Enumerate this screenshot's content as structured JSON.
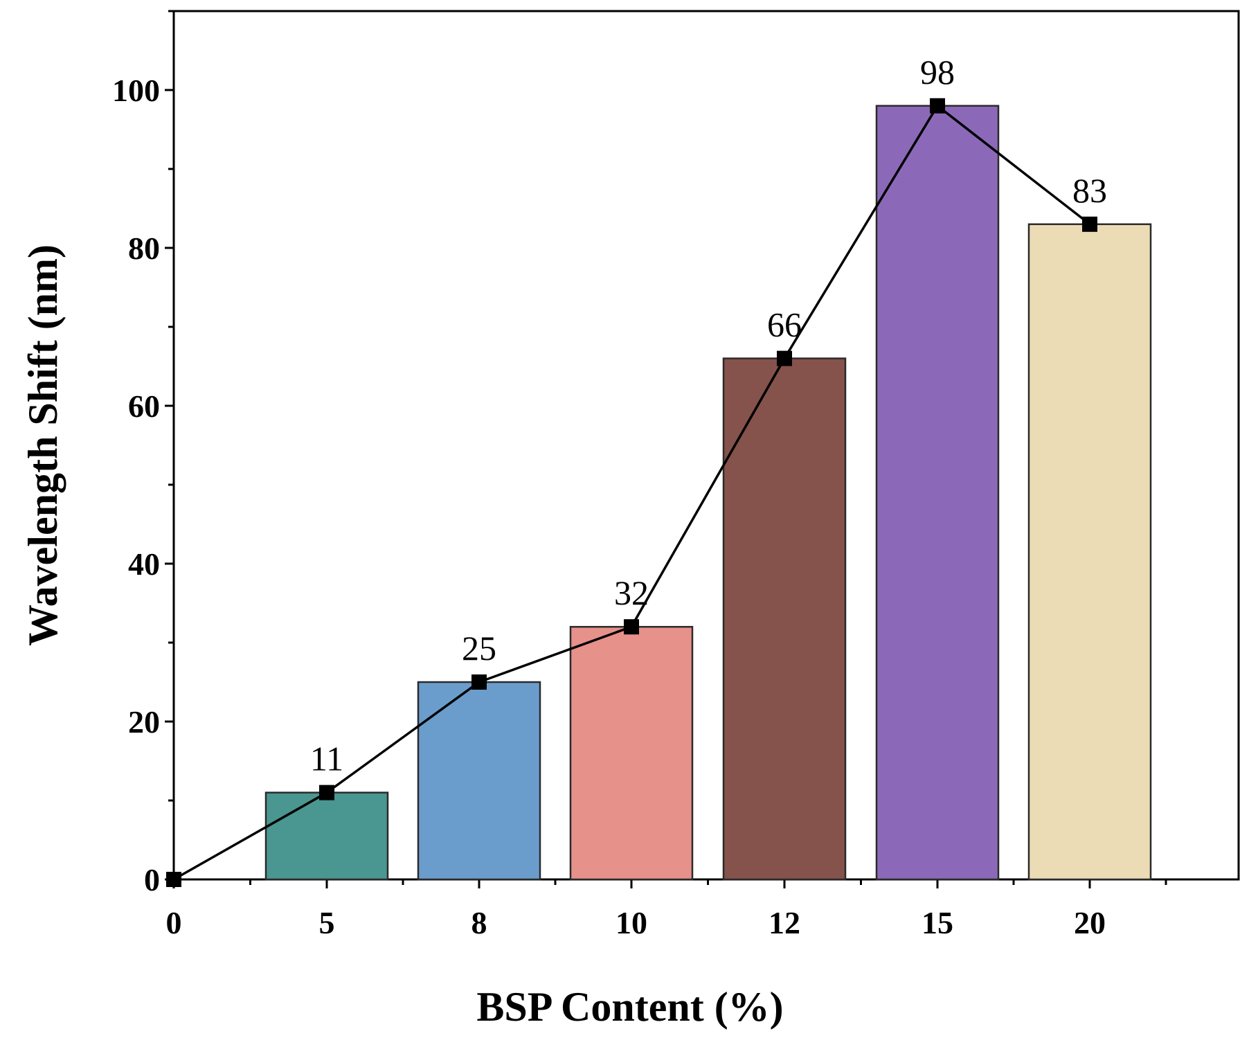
{
  "chart_data": {
    "type": "bar",
    "categories": [
      "0",
      "5",
      "8",
      "10",
      "12",
      "15",
      "20"
    ],
    "values": [
      0,
      11,
      25,
      32,
      66,
      98,
      83
    ],
    "data_labels": [
      "",
      "11",
      "25",
      "32",
      "66",
      "98",
      "83"
    ],
    "bar_colors": [
      "",
      "#4a9690",
      "#6a9dcc",
      "#e6918a",
      "#85524c",
      "#8b69b8",
      "#ecdcb6"
    ],
    "line_overlay": true,
    "marker": "square",
    "xlabel": "BSP Content (%)",
    "ylabel": "Wavelength Shift (nm)",
    "ylim": [
      0,
      110
    ],
    "yticks": [
      0,
      20,
      40,
      60,
      80,
      100
    ],
    "grid": false,
    "legend": "none"
  }
}
